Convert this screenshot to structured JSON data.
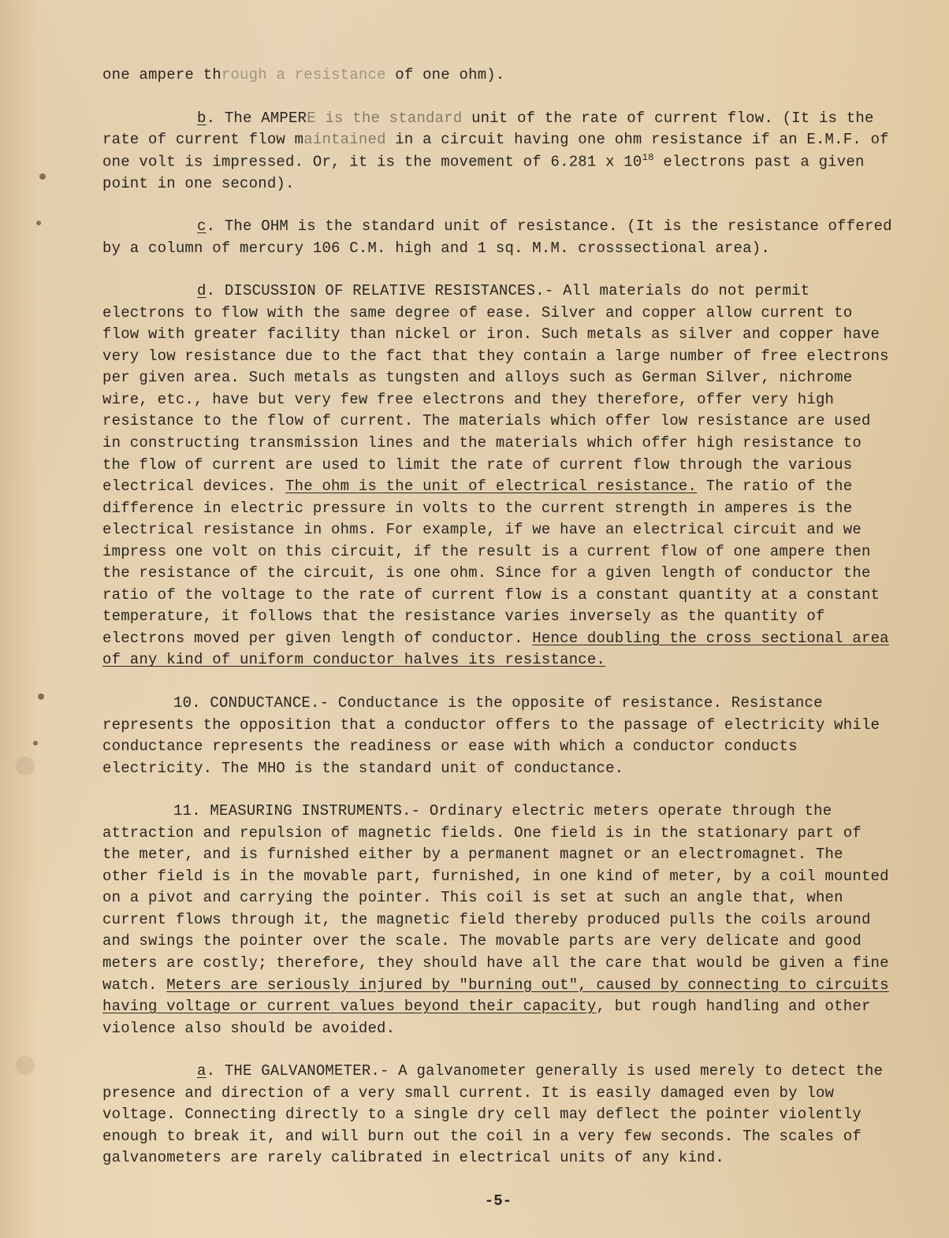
{
  "doc": {
    "background_color": "#e8d4b0",
    "text_color": "#2a2520",
    "font_family": "Courier",
    "font_size_pt": 12,
    "page_number": "-5-"
  },
  "p_top": {
    "pre": "one ampere th",
    "faded": "rough a resistance",
    "post": " of one ohm)."
  },
  "b": {
    "label": "b",
    "s1a": ".  The AMPER",
    "s1faded": "E is the standard",
    "s1b": " unit of the rate of current flow. (It is the rate of current flow m",
    "s1faded2": "aintained",
    "s1c": " in a circuit having one ohm resistance if an E.M.F. of one volt is impressed.  Or, it is the movement of 6.281 x 10",
    "exp": "18",
    "s1d": " electrons past a given point in one second)."
  },
  "c": {
    "label": "c",
    "text": ".  The OHM is the standard unit of resistance.  (It is the resistance offered by a column of mercury 106 C.M. high and 1 sq. M.M. crosssectional area)."
  },
  "d": {
    "label": "d",
    "t1": ".  DISCUSSION OF RELATIVE RESISTANCES.- All materials do not permit electrons to flow with the same degree of ease.  Silver and copper allow current to flow with greater facility than nickel or iron.  Such metals as silver and copper have very low resistance due to the fact that they contain a large number of free electrons per given area.  Such metals as tungsten and alloys such as German Silver, nichrome wire, etc., have but very few free electrons and they therefore, offer very high resistance to the flow of current. The materials which offer low resistance are used in constructing transmission lines and the materials which offer high resistance to the flow of current are used to limit the rate of current flow through the various electrical devices. ",
    "u1": "The ohm is the unit of electrical resistance.",
    "t2": "  The ratio of the difference in electric pressure in volts to the current strength in amperes is the electrical resistance in ohms.  For example, if we have an electrical circuit and we impress one volt on this circuit, if the result is a current flow of one ampere then the resistance of the circuit, is one ohm.  Since for a given length of conductor the ratio of the voltage to the rate of current flow is a constant quantity at a constant temperature, it follows that the resistance varies inversely as the quantity of electrons moved per given length of conductor. ",
    "u2": "Hence doubling the cross sectional area of any kind of uniform conductor halves its resistance."
  },
  "p10": {
    "text": "10.  CONDUCTANCE.-  Conductance is the opposite of resistance.  Resistance represents the opposition that a conductor offers to the passage of electricity while conductance represents the readiness or ease with which a conductor conducts electricity.  The MHO is the standard unit of conductance."
  },
  "p11": {
    "t1": "11.  MEASURING INSTRUMENTS.-  Ordinary electric meters operate through the attraction and repulsion of magnetic fields.  One field is in the stationary part of the meter, and is furnished either by a permanent magnet or an electromagnet.  The other field is in the movable part, furnished, in one kind of meter, by a coil mounted on a pivot and carrying the pointer.  This coil is set at such an angle that, when current flows through it, the magnetic field thereby produced pulls the coils around and swings the pointer over the scale. The movable parts are very delicate and good meters are costly; therefore, they should have all the care that would be given a fine watch.  ",
    "u1": "Meters are seriously injured by \"burning out\", caused by connecting to circuits having voltage or current values beyond their capacity",
    "t2": ", but rough handling and other violence also should be avoided."
  },
  "a": {
    "label": "a",
    "text": ".  THE GALVANOMETER.-  A galvanometer generally is used merely to detect the presence and direction of a very small current.  It is easily damaged even by low voltage.  Connecting directly to a single dry cell may deflect the pointer violently enough to break it, and will burn out the coil in a very few seconds.  The scales of galvanometers are rarely calibrated in electrical units of any kind."
  }
}
